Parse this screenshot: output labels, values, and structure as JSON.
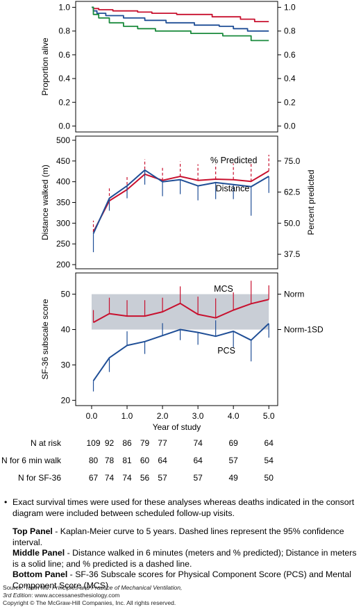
{
  "chart_data": [
    {
      "type": "line",
      "ylabel": "Proportion alive",
      "xlim": [
        -0.45,
        5.25
      ],
      "ylim": [
        -0.05,
        1.05
      ],
      "yticks": [
        "0.0",
        "0.2",
        "0.4",
        "0.6",
        "0.8",
        "1.0"
      ],
      "yticks_right": [
        "0.0",
        "0.2",
        "0.4",
        "0.6",
        "0.8",
        "1.0"
      ],
      "series": [
        {
          "color": "#c8102e",
          "style": "step",
          "x": [
            0,
            0.05,
            0.2,
            0.6,
            1.3,
            1.7,
            2.4,
            3.4,
            4.2,
            4.6,
            5.0
          ],
          "y": [
            1.0,
            0.99,
            0.98,
            0.97,
            0.96,
            0.95,
            0.94,
            0.92,
            0.9,
            0.88,
            0.88
          ]
        },
        {
          "color": "#1f4e96",
          "style": "step",
          "x": [
            0,
            0.05,
            0.15,
            0.4,
            0.9,
            1.5,
            2.1,
            2.9,
            3.6,
            4.0,
            4.4,
            5.0
          ],
          "y": [
            1.0,
            0.97,
            0.95,
            0.93,
            0.91,
            0.89,
            0.87,
            0.85,
            0.84,
            0.82,
            0.8,
            0.8
          ]
        },
        {
          "color": "#1a8a3c",
          "style": "step",
          "x": [
            0,
            0.05,
            0.2,
            0.5,
            0.9,
            1.3,
            1.8,
            2.8,
            3.7,
            4.5,
            5.0
          ],
          "y": [
            1.0,
            0.94,
            0.91,
            0.87,
            0.84,
            0.82,
            0.8,
            0.78,
            0.76,
            0.72,
            0.72
          ]
        }
      ]
    },
    {
      "type": "line",
      "ylabel": "Distance walked (m)",
      "ylabel_right": "Percent predicted",
      "xlim": [
        -0.45,
        5.25
      ],
      "ylim": [
        190,
        510
      ],
      "yticks": [
        "200",
        "250",
        "300",
        "350",
        "400",
        "450",
        "500"
      ],
      "yticks_right": [
        "37.5",
        "50.0",
        "62.5",
        "75.0"
      ],
      "yticks_right_at": [
        37.5,
        50.0,
        62.5,
        75.0
      ],
      "right_axis_map": {
        "data": [
          37.5,
          75.0
        ],
        "left_units": [
          225,
          450
        ]
      },
      "x": [
        0.05,
        0.5,
        1.0,
        1.5,
        2.0,
        2.5,
        3.0,
        3.5,
        4.0,
        4.5,
        5.0
      ],
      "series": [
        {
          "name": "% Predicted",
          "color": "#c8102e",
          "errorbar": "dashed-up",
          "values": [
            46.5,
            59.0,
            63.5,
            69.7,
            67.2,
            68.8,
            67.2,
            67.7,
            67.5,
            66.8,
            71.0
          ],
          "err": [
            4.5,
            5.0,
            5.5,
            6.0,
            5.5,
            6.0,
            6.5,
            6.0,
            6.5,
            7.0,
            6.5
          ]
        },
        {
          "name": "Distance",
          "color": "#1f4e96",
          "errorbar": "solid-down",
          "values": [
            275,
            360,
            390,
            428,
            400,
            405,
            390,
            398,
            393,
            388,
            413
          ],
          "err": [
            45,
            30,
            30,
            35,
            35,
            35,
            35,
            40,
            35,
            70,
            40
          ]
        }
      ],
      "annotations": [
        "% Predicted",
        "Distance"
      ]
    },
    {
      "type": "line",
      "xlabel": "Year of study",
      "ylabel": "SF-36 subscale score",
      "xlim": [
        -0.45,
        5.25
      ],
      "ylim": [
        18.5,
        56
      ],
      "xticks": [
        "0.0",
        "1.0",
        "2.0",
        "3.0",
        "4.0",
        "5.0"
      ],
      "yticks": [
        "20",
        "30",
        "40",
        "50"
      ],
      "band": [
        40,
        50
      ],
      "band_color": "#c9ced6",
      "right_labels": [
        {
          "y": 50,
          "label": "Norm"
        },
        {
          "y": 40,
          "label": "Norm-1SD"
        }
      ],
      "x": [
        0.05,
        0.5,
        1.0,
        1.5,
        2.0,
        2.5,
        3.0,
        3.5,
        4.0,
        4.5,
        5.0
      ],
      "series": [
        {
          "name": "MCS",
          "color": "#c8102e",
          "errorbar": "solid-up",
          "values": [
            42.0,
            44.5,
            43.8,
            43.8,
            45.0,
            47.4,
            44.3,
            43.3,
            45.5,
            47.3,
            48.5
          ],
          "err": [
            3.5,
            4.5,
            4.5,
            4.5,
            4.0,
            4.8,
            5.0,
            5.5,
            5.0,
            6.5,
            4.0
          ]
        },
        {
          "name": "PCS",
          "color": "#1f4e96",
          "errorbar": "solid-mixed",
          "values": [
            25.5,
            32.0,
            35.5,
            36.6,
            38.3,
            40.0,
            39.2,
            38.1,
            39.5,
            37.0,
            41.7
          ],
          "err": [
            3.0,
            4.0,
            4.0,
            3.5,
            3.5,
            3.0,
            3.5,
            4.5,
            4.5,
            6.0,
            4.0
          ],
          "err_dir": [
            -1,
            -1,
            1,
            -1,
            1,
            -1,
            -1,
            1,
            -1,
            -1,
            -1
          ]
        }
      ],
      "annotations": [
        "MCS",
        "PCS"
      ]
    }
  ],
  "risk_table": {
    "rows": [
      {
        "label": "N at risk",
        "values": [
          "109",
          "92",
          "86",
          "79",
          "77",
          "74",
          "69",
          "64"
        ]
      },
      {
        "label": "N for 6 min walk",
        "values": [
          "80",
          "78",
          "81",
          "60",
          "64",
          "64",
          "57",
          "54"
        ]
      },
      {
        "label": "N for SF-36",
        "values": [
          "67",
          "74",
          "74",
          "56",
          "57",
          "57",
          "49",
          "50"
        ]
      }
    ],
    "x": [
      0.05,
      0.5,
      1.0,
      1.5,
      2.0,
      3.0,
      4.0,
      5.0
    ]
  },
  "notes": {
    "bullet": "Exact survival times were used for these analyses whereas deaths indicated in the consort diagram were included between scheduled follow-up visits.",
    "top_title": "Top Panel",
    "top_text": " - Kaplan-Meier curve to 5 years. Dashed lines represent the 95% confidence interval.",
    "middle_title": "Middle Panel",
    "middle_text": " - Distance walked in 6 minutes (meters and % predicted); Distance in meters is a solid line; and % predicted is a dashed line.",
    "bottom_title": "Bottom Panel",
    "bottom_text": " - SF-36 Subscale scores for Physical Component Score (PCS) and Mental Component Score (MCS)"
  },
  "source": {
    "prefix": "Source: Tobin MJ: ",
    "book": "Principles and Practice of Mechanical Ventilation,",
    "edition": "3rd Edition",
    "site": ": www.accessanesthesiology.com",
    "copyright": "Copyright © The McGraw-Hill Companies, Inc. All rights reserved."
  }
}
